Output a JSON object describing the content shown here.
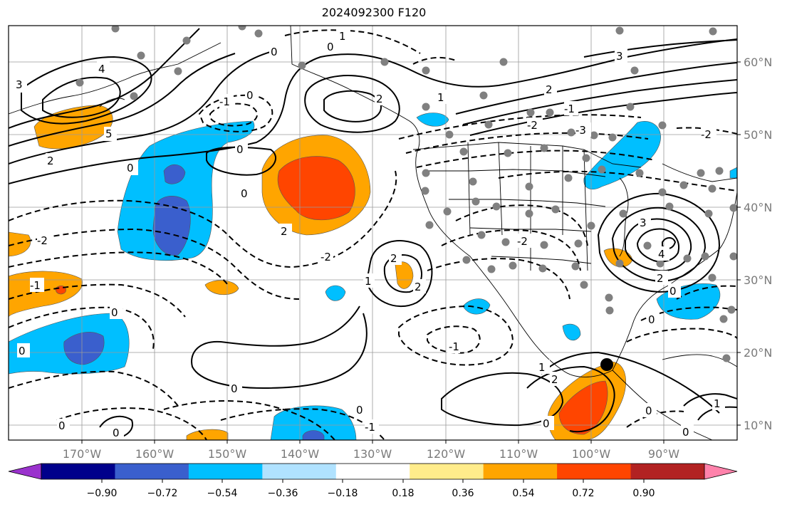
{
  "title": "2024092300 F120",
  "map": {
    "lon_labels": [
      "170°W",
      "160°W",
      "150°W",
      "140°W",
      "130°W",
      "120°W",
      "110°W",
      "100°W",
      "90°W"
    ],
    "lat_labels": [
      "60°N",
      "50°N",
      "40°N",
      "30°N",
      "20°N",
      "10°N"
    ],
    "grid": true,
    "contour_labels": [
      "0",
      "1",
      "-1",
      "2",
      "-2",
      "3",
      "-3",
      "4",
      "5"
    ]
  },
  "colorbar": {
    "ticks": [
      "−0.90",
      "−0.72",
      "−0.54",
      "−0.36",
      "−0.18",
      "0.18",
      "0.36",
      "0.54",
      "0.72",
      "0.90"
    ],
    "colors": [
      "#9a32cd",
      "#00008b",
      "#3a5fcd",
      "#00bfff",
      "#b0e2ff",
      "#ffffff",
      "#ffec8b",
      "#ffa500",
      "#ff4500",
      "#b22222",
      "#ff82ab"
    ]
  },
  "colors": {
    "light_blue": "#00bfff",
    "med_blue": "#3a5fcd",
    "orange": "#ffa500",
    "red_orange": "#ff4500",
    "marker_gray": "#808080"
  }
}
